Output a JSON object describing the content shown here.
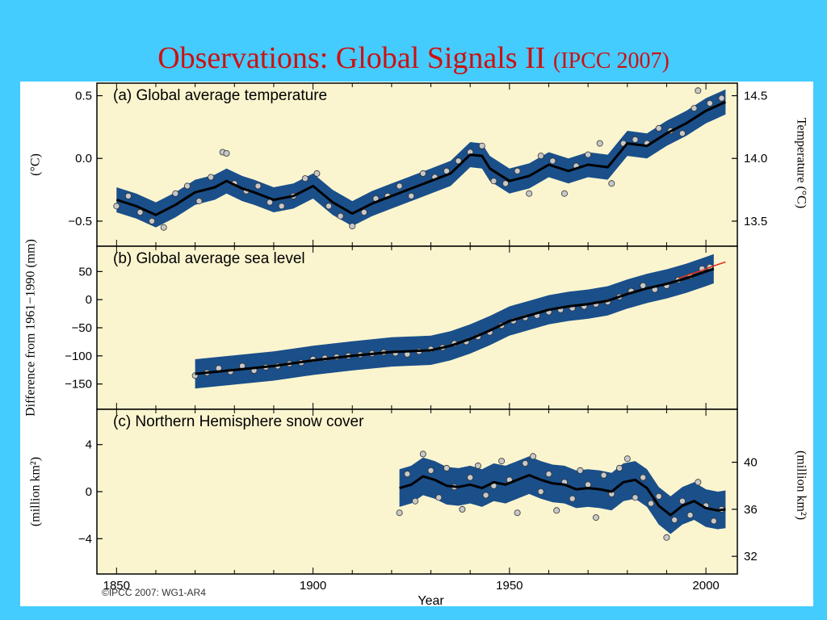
{
  "slide": {
    "title_main": "Observations: Global Signals II",
    "title_sub": "(IPCC 2007)"
  },
  "figure": {
    "copyright": "©IPCC  2007: WG1-AR4",
    "xlabel": "Year"
  },
  "colors": {
    "background": "#44ccff",
    "title": "#cc1111",
    "plot_background": "#fbf5cf",
    "uncertainty_band": "#1a4f8a",
    "smooth_line": "#000000",
    "points": "#c8c8c8",
    "satellite_line": "#dd3322"
  },
  "chart_data": [
    {
      "type": "line",
      "title": "(a) Global average temperature",
      "ylabel": "(°C)",
      "ylabel_right": "Temperature (°C)",
      "xlim": [
        1845,
        2008
      ],
      "ylim": [
        -0.7,
        0.6
      ],
      "yticks": [
        -0.5,
        0.0,
        0.5
      ],
      "ytick_labels": [
        "−0.5",
        "0.0",
        "0.5"
      ],
      "right_ticks": [
        13.5,
        14.0,
        14.5
      ],
      "right_tick_labels": [
        "13.5",
        "14.0",
        "14.5"
      ],
      "right_offset": 14.0,
      "band_halfwidth": 0.1,
      "series": [
        {
          "type": "line",
          "x": [
            1850,
            1855,
            1860,
            1865,
            1870,
            1875,
            1878,
            1882,
            1885,
            1890,
            1895,
            1900,
            1905,
            1910,
            1915,
            1920,
            1925,
            1930,
            1935,
            1940,
            1943,
            1945,
            1950,
            1955,
            1960,
            1965,
            1970,
            1975,
            1980,
            1985,
            1990,
            1995,
            2000,
            2005
          ],
          "values": [
            -0.33,
            -0.38,
            -0.45,
            -0.37,
            -0.27,
            -0.23,
            -0.18,
            -0.24,
            -0.27,
            -0.33,
            -0.3,
            -0.22,
            -0.35,
            -0.44,
            -0.36,
            -0.3,
            -0.24,
            -0.18,
            -0.12,
            0.03,
            0.02,
            -0.08,
            -0.18,
            -0.14,
            -0.05,
            -0.1,
            -0.05,
            -0.07,
            0.12,
            0.1,
            0.2,
            0.28,
            0.38,
            0.45
          ]
        },
        {
          "type": "scatter",
          "x": [
            1850,
            1853,
            1856,
            1859,
            1862,
            1865,
            1868,
            1871,
            1874,
            1877,
            1878,
            1880,
            1883,
            1886,
            1889,
            1892,
            1895,
            1898,
            1901,
            1904,
            1907,
            1910,
            1913,
            1916,
            1919,
            1922,
            1925,
            1928,
            1931,
            1934,
            1937,
            1940,
            1943,
            1946,
            1949,
            1952,
            1955,
            1958,
            1961,
            1964,
            1967,
            1970,
            1973,
            1976,
            1979,
            1982,
            1985,
            1988,
            1991,
            1994,
            1997,
            1998,
            2001,
            2004
          ],
          "values": [
            -0.38,
            -0.3,
            -0.43,
            -0.5,
            -0.55,
            -0.28,
            -0.22,
            -0.34,
            -0.15,
            0.05,
            0.04,
            -0.2,
            -0.26,
            -0.22,
            -0.35,
            -0.38,
            -0.3,
            -0.16,
            -0.12,
            -0.38,
            -0.46,
            -0.54,
            -0.43,
            -0.32,
            -0.3,
            -0.22,
            -0.3,
            -0.12,
            -0.15,
            -0.1,
            -0.02,
            0.05,
            0.1,
            -0.18,
            -0.2,
            -0.1,
            -0.28,
            0.02,
            -0.02,
            -0.28,
            -0.06,
            0.03,
            0.12,
            -0.2,
            0.12,
            0.15,
            0.12,
            0.24,
            0.22,
            0.2,
            0.4,
            0.54,
            0.44,
            0.48
          ]
        }
      ]
    },
    {
      "type": "line",
      "title": "(b) Global average sea level",
      "ylabel": "Difference from 1961−1990 (mm)",
      "xlim": [
        1845,
        2008
      ],
      "ylim": [
        -195,
        95
      ],
      "yticks": [
        -150,
        -100,
        -50,
        0,
        50
      ],
      "ytick_labels": [
        "−150",
        "−100",
        "−50",
        "0",
        "50"
      ],
      "band_halfwidth": 26,
      "series": [
        {
          "type": "line",
          "x": [
            1870,
            1880,
            1890,
            1900,
            1910,
            1920,
            1930,
            1935,
            1940,
            1945,
            1950,
            1955,
            1960,
            1965,
            1970,
            1975,
            1980,
            1985,
            1990,
            1995,
            2000,
            2002
          ],
          "values": [
            -132,
            -125,
            -118,
            -108,
            -100,
            -93,
            -90,
            -82,
            -70,
            -55,
            -38,
            -28,
            -18,
            -12,
            -8,
            -2,
            10,
            20,
            28,
            38,
            50,
            55
          ]
        },
        {
          "type": "scatter",
          "x": [
            1870,
            1873,
            1876,
            1879,
            1882,
            1885,
            1888,
            1891,
            1894,
            1897,
            1900,
            1903,
            1906,
            1909,
            1912,
            1915,
            1918,
            1921,
            1924,
            1927,
            1930,
            1933,
            1936,
            1939,
            1942,
            1945,
            1948,
            1951,
            1954,
            1957,
            1960,
            1963,
            1966,
            1969,
            1972,
            1975,
            1978,
            1981,
            1984,
            1987,
            1990,
            1993,
            1996,
            1999,
            2001
          ],
          "values": [
            -135,
            -130,
            -122,
            -128,
            -118,
            -126,
            -120,
            -118,
            -114,
            -112,
            -106,
            -104,
            -102,
            -100,
            -98,
            -96,
            -94,
            -95,
            -97,
            -92,
            -88,
            -85,
            -78,
            -75,
            -66,
            -58,
            -46,
            -38,
            -32,
            -28,
            -22,
            -18,
            -15,
            -12,
            -8,
            -4,
            5,
            15,
            25,
            18,
            25,
            35,
            42,
            55,
            58
          ]
        },
        {
          "type": "line",
          "name": "satellite",
          "x": [
            1993,
            1996,
            1999,
            2002,
            2005
          ],
          "values": [
            38,
            45,
            52,
            60,
            67
          ]
        }
      ]
    },
    {
      "type": "line",
      "title": "(c) Northern Hemisphere snow cover",
      "ylabel": "(million km²)",
      "ylabel_right": "(million km²)",
      "xlim": [
        1845,
        2008
      ],
      "ylim": [
        -7,
        7
      ],
      "yticks": [
        -4,
        0,
        4
      ],
      "ytick_labels": [
        "−4",
        "0",
        "4"
      ],
      "right_ticks": [
        32,
        36,
        40
      ],
      "right_tick_labels": [
        "32",
        "36",
        "40"
      ],
      "right_offset": 37.5,
      "band_halfwidth": 1.6,
      "series": [
        {
          "type": "line",
          "x": [
            1922,
            1925,
            1928,
            1931,
            1934,
            1937,
            1940,
            1943,
            1946,
            1949,
            1952,
            1955,
            1958,
            1961,
            1964,
            1967,
            1970,
            1973,
            1976,
            1979,
            1982,
            1985,
            1988,
            1991,
            1994,
            1997,
            2000,
            2003,
            2005
          ],
          "values": [
            0.3,
            0.6,
            1.3,
            1.0,
            0.5,
            0.4,
            0.6,
            0.3,
            0.8,
            0.6,
            1.0,
            1.4,
            1.0,
            0.7,
            0.6,
            0.2,
            0.3,
            0.2,
            0.0,
            0.8,
            1.0,
            0.3,
            -1.2,
            -2.0,
            -1.2,
            -0.8,
            -1.4,
            -1.6,
            -1.5
          ]
        },
        {
          "type": "scatter",
          "x": [
            1922,
            1924,
            1926,
            1928,
            1930,
            1932,
            1934,
            1936,
            1938,
            1940,
            1942,
            1944,
            1946,
            1948,
            1950,
            1952,
            1954,
            1956,
            1958,
            1960,
            1962,
            1964,
            1966,
            1968,
            1970,
            1972,
            1974,
            1976,
            1978,
            1980,
            1982,
            1984,
            1986,
            1988,
            1990,
            1992,
            1994,
            1996,
            1998,
            2000,
            2002,
            2004
          ],
          "values": [
            -1.8,
            1.5,
            -0.8,
            3.2,
            1.8,
            -0.5,
            2.0,
            0.4,
            -1.5,
            1.2,
            2.2,
            -0.3,
            0.5,
            2.6,
            1.0,
            -1.8,
            2.4,
            3.0,
            0.0,
            1.5,
            -1.6,
            0.8,
            -0.6,
            1.8,
            0.6,
            -2.2,
            1.4,
            -0.2,
            2.0,
            2.8,
            -0.5,
            1.2,
            -1.0,
            -0.4,
            -3.9,
            -2.4,
            -0.8,
            -2.0,
            0.8,
            -1.2,
            -2.5,
            -1.5
          ]
        }
      ]
    }
  ]
}
